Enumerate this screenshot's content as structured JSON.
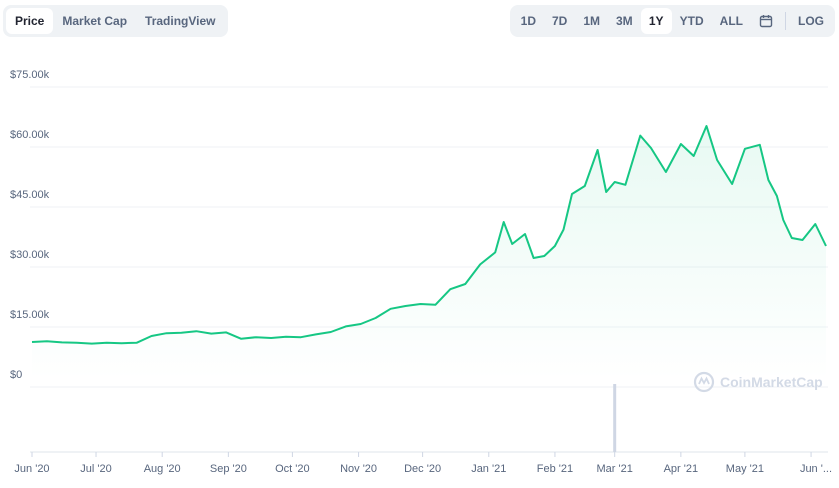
{
  "tabs": [
    {
      "label": "Price",
      "active": true
    },
    {
      "label": "Market Cap",
      "active": false
    },
    {
      "label": "TradingView",
      "active": false
    }
  ],
  "ranges": [
    {
      "label": "1D",
      "active": false
    },
    {
      "label": "7D",
      "active": false
    },
    {
      "label": "1M",
      "active": false
    },
    {
      "label": "3M",
      "active": false
    },
    {
      "label": "1Y",
      "active": true
    },
    {
      "label": "YTD",
      "active": false
    },
    {
      "label": "ALL",
      "active": false
    }
  ],
  "calendar_icon": "calendar-icon",
  "log_label": "LOG",
  "watermark": "CoinMarketCap",
  "colors": {
    "line": "#16c784",
    "fill": "#16c784",
    "grid": "#eff2f5",
    "axis_text": "#58667e",
    "volume": "#cfd6e4"
  },
  "chart_data": {
    "type": "line",
    "title": "",
    "xlabel": "",
    "ylabel": "",
    "ylim": [
      0,
      75000
    ],
    "y_ticks": [
      "$0",
      "$15.00k",
      "$30.00k",
      "$45.00k",
      "$60.00k",
      "$75.00k"
    ],
    "y_tick_values": [
      0,
      15000,
      30000,
      45000,
      60000,
      75000
    ],
    "x_ticks": [
      "Jun '20",
      "Jul '20",
      "Aug '20",
      "Sep '20",
      "Oct '20",
      "Nov '20",
      "Dec '20",
      "Jan '21",
      "Feb '21",
      "Mar '21",
      "Apr '21",
      "May '21",
      "Jun '..."
    ],
    "x_tick_dates": [
      "2020-06-01",
      "2020-07-01",
      "2020-08-01",
      "2020-09-01",
      "2020-10-01",
      "2020-11-01",
      "2020-12-01",
      "2021-01-01",
      "2021-02-01",
      "2021-03-01",
      "2021-04-01",
      "2021-05-01",
      "2021-06-01"
    ],
    "grid": true,
    "series": [
      {
        "x": [
          "2020-06-01",
          "2020-06-08",
          "2020-06-15",
          "2020-06-22",
          "2020-06-29",
          "2020-07-06",
          "2020-07-13",
          "2020-07-20",
          "2020-07-27",
          "2020-08-03",
          "2020-08-10",
          "2020-08-17",
          "2020-08-24",
          "2020-08-31",
          "2020-09-07",
          "2020-09-14",
          "2020-09-21",
          "2020-09-28",
          "2020-10-05",
          "2020-10-12",
          "2020-10-19",
          "2020-10-26",
          "2020-11-02",
          "2020-11-09",
          "2020-11-16",
          "2020-11-23",
          "2020-11-30",
          "2020-12-07",
          "2020-12-14",
          "2020-12-21",
          "2020-12-28",
          "2021-01-04",
          "2021-01-08",
          "2021-01-12",
          "2021-01-18",
          "2021-01-22",
          "2021-01-27",
          "2021-02-01",
          "2021-02-05",
          "2021-02-09",
          "2021-02-15",
          "2021-02-21",
          "2021-02-25",
          "2021-03-01",
          "2021-03-06",
          "2021-03-13",
          "2021-03-18",
          "2021-03-25",
          "2021-04-01",
          "2021-04-07",
          "2021-04-13",
          "2021-04-18",
          "2021-04-25",
          "2021-05-01",
          "2021-05-08",
          "2021-05-12",
          "2021-05-16",
          "2021-05-19",
          "2021-05-23",
          "2021-05-28",
          "2021-06-03",
          "2021-06-08"
        ],
        "y": [
          9500,
          9700,
          9400,
          9300,
          9100,
          9300,
          9200,
          9300,
          11000,
          11700,
          11800,
          12200,
          11600,
          11900,
          10300,
          10700,
          10500,
          10800,
          10700,
          11400,
          12000,
          13400,
          14000,
          15500,
          17800,
          18500,
          19000,
          18800,
          22700,
          24000,
          28900,
          31900,
          39500,
          34000,
          36500,
          30500,
          31000,
          33500,
          37600,
          46500,
          48500,
          57500,
          47000,
          49500,
          48800,
          61100,
          58000,
          52000,
          59000,
          56000,
          63500,
          55000,
          49000,
          57800,
          58800,
          50000,
          46000,
          40000,
          35500,
          35000,
          39000,
          33500
        ]
      }
    ]
  }
}
